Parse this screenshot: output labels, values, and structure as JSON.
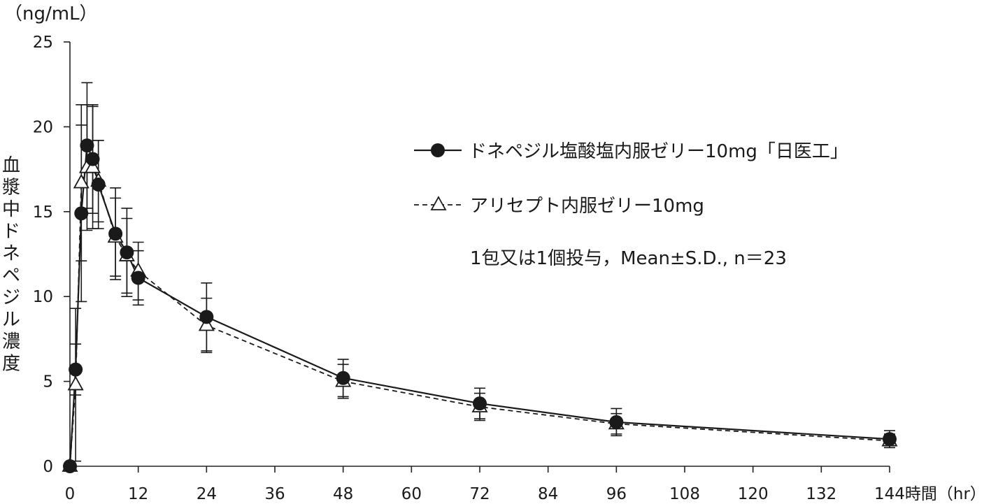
{
  "chart_data": {
    "type": "line",
    "y_unit_label": "（ng/mL）",
    "ylabel": "血漿中ドネペジル濃度",
    "xlabel": "時間（hr）",
    "x_last_tick_label": "144時間（hr）",
    "xlim": [
      0,
      144
    ],
    "ylim": [
      0,
      25
    ],
    "x_ticks": [
      "0",
      "12",
      "24",
      "36",
      "48",
      "60",
      "72",
      "84",
      "96",
      "108",
      "120",
      "132",
      "144"
    ],
    "y_ticks": [
      "0",
      "5",
      "10",
      "15",
      "20",
      "25"
    ],
    "grid": false,
    "legend_position": "top-right",
    "note": "1包又は1個投与，Mean±S.D., n＝23",
    "series": [
      {
        "name": "ドネペジル塩酸塩内服ゼリー10mg「日医工」",
        "marker": "filled-circle",
        "line": "solid",
        "points": [
          {
            "x": 0,
            "y": 0.0
          },
          {
            "x": 1,
            "y": 5.7
          },
          {
            "x": 2,
            "y": 14.9
          },
          {
            "x": 3,
            "y": 18.9
          },
          {
            "x": 4,
            "y": 18.1
          },
          {
            "x": 5,
            "y": 16.6
          },
          {
            "x": 8,
            "y": 13.7
          },
          {
            "x": 10,
            "y": 12.6
          },
          {
            "x": 12,
            "y": 11.1
          },
          {
            "x": 24,
            "y": 8.8
          },
          {
            "x": 48,
            "y": 5.2
          },
          {
            "x": 72,
            "y": 3.7
          },
          {
            "x": 96,
            "y": 2.6
          },
          {
            "x": 144,
            "y": 1.6
          }
        ],
        "error_bars": [
          {
            "x": 1,
            "y": 5.7,
            "sd": 1.5
          },
          {
            "x": 2,
            "y": 14.9,
            "sd": 5.2
          },
          {
            "x": 3,
            "y": 18.9,
            "sd": 3.7
          },
          {
            "x": 4,
            "y": 18.1,
            "sd": 3.2
          },
          {
            "x": 5,
            "y": 16.6,
            "sd": 2.6
          },
          {
            "x": 8,
            "y": 13.7,
            "sd": 2.7
          },
          {
            "x": 10,
            "y": 12.6,
            "sd": 2.6
          },
          {
            "x": 12,
            "y": 11.1,
            "sd": 1.6
          },
          {
            "x": 24,
            "y": 8.8,
            "sd": 2.0
          },
          {
            "x": 48,
            "y": 5.2,
            "sd": 1.1
          },
          {
            "x": 72,
            "y": 3.7,
            "sd": 0.9
          },
          {
            "x": 96,
            "y": 2.6,
            "sd": 0.8
          },
          {
            "x": 144,
            "y": 1.6,
            "sd": 0.5
          }
        ]
      },
      {
        "name": "アリセプト内服ゼリー10mg",
        "marker": "open-triangle",
        "line": "dashed",
        "points": [
          {
            "x": 0,
            "y": 0.0
          },
          {
            "x": 1,
            "y": 4.8
          },
          {
            "x": 2,
            "y": 16.7
          },
          {
            "x": 3,
            "y": 17.6
          },
          {
            "x": 4,
            "y": 17.6
          },
          {
            "x": 5,
            "y": 16.8
          },
          {
            "x": 8,
            "y": 13.5
          },
          {
            "x": 10,
            "y": 12.4
          },
          {
            "x": 12,
            "y": 11.5
          },
          {
            "x": 24,
            "y": 8.3
          },
          {
            "x": 48,
            "y": 5.0
          },
          {
            "x": 72,
            "y": 3.5
          },
          {
            "x": 96,
            "y": 2.5
          },
          {
            "x": 144,
            "y": 1.5
          }
        ],
        "error_bars": [
          {
            "x": 1,
            "y": 4.8,
            "sd": 4.5
          },
          {
            "x": 2,
            "y": 16.7,
            "sd": 4.6
          },
          {
            "x": 3,
            "y": 17.6,
            "sd": 3.7
          },
          {
            "x": 4,
            "y": 17.6,
            "sd": 3.6
          },
          {
            "x": 5,
            "y": 16.8,
            "sd": 2.4
          },
          {
            "x": 8,
            "y": 13.5,
            "sd": 2.3
          },
          {
            "x": 10,
            "y": 12.4,
            "sd": 2.2
          },
          {
            "x": 12,
            "y": 11.5,
            "sd": 1.7
          },
          {
            "x": 24,
            "y": 8.3,
            "sd": 1.6
          },
          {
            "x": 48,
            "y": 5.0,
            "sd": 1.0
          },
          {
            "x": 72,
            "y": 3.5,
            "sd": 0.8
          },
          {
            "x": 96,
            "y": 2.5,
            "sd": 0.6
          },
          {
            "x": 144,
            "y": 1.5,
            "sd": 0.4
          }
        ]
      }
    ]
  }
}
